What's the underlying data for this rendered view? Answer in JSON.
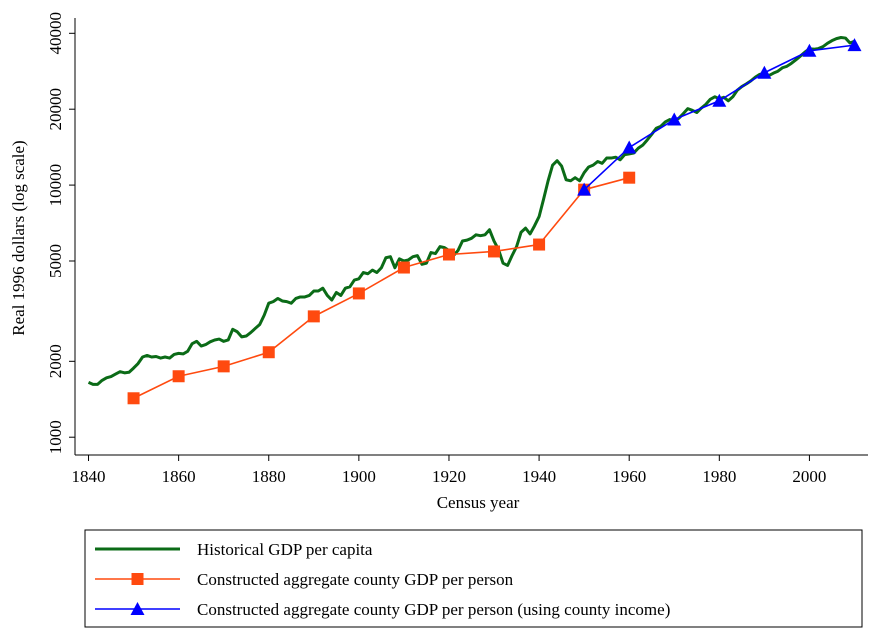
{
  "chart_data": {
    "type": "line",
    "ylabel": "Real 1996 dollars (log scale)",
    "xlabel": "Census year",
    "xlim": [
      1837,
      2013
    ],
    "xticks": [
      1840,
      1860,
      1880,
      1900,
      1920,
      1940,
      1960,
      1980,
      2000
    ],
    "ylim": [
      850,
      46000
    ],
    "yticks": [
      1000,
      2000,
      5000,
      10000,
      20000,
      40000
    ],
    "log_scale": true,
    "grid": false,
    "legend": "bottom",
    "series": [
      {
        "name": "Historical GDP per capita",
        "color": "#0b6b17",
        "marker": "none",
        "x": [
          1840,
          1841,
          1842,
          1843,
          1844,
          1845,
          1846,
          1847,
          1848,
          1849,
          1850,
          1851,
          1852,
          1853,
          1854,
          1855,
          1856,
          1857,
          1858,
          1859,
          1860,
          1861,
          1862,
          1863,
          1864,
          1865,
          1866,
          1867,
          1868,
          1869,
          1870,
          1871,
          1872,
          1873,
          1874,
          1875,
          1876,
          1877,
          1878,
          1879,
          1880,
          1881,
          1882,
          1883,
          1884,
          1885,
          1886,
          1887,
          1888,
          1889,
          1890,
          1891,
          1892,
          1893,
          1894,
          1895,
          1896,
          1897,
          1898,
          1899,
          1900,
          1901,
          1902,
          1903,
          1904,
          1905,
          1906,
          1907,
          1908,
          1909,
          1910,
          1911,
          1912,
          1913,
          1914,
          1915,
          1916,
          1917,
          1918,
          1919,
          1920,
          1921,
          1922,
          1923,
          1924,
          1925,
          1926,
          1927,
          1928,
          1929,
          1930,
          1931,
          1932,
          1933,
          1934,
          1935,
          1936,
          1937,
          1938,
          1939,
          1940,
          1941,
          1942,
          1943,
          1944,
          1945,
          1946,
          1947,
          1948,
          1949,
          1950,
          1951,
          1952,
          1953,
          1954,
          1955,
          1956,
          1957,
          1958,
          1959,
          1960,
          1961,
          1962,
          1963,
          1964,
          1965,
          1966,
          1967,
          1968,
          1969,
          1970,
          1971,
          1972,
          1973,
          1974,
          1975,
          1976,
          1977,
          1978,
          1979,
          1980,
          1981,
          1982,
          1983,
          1984,
          1985,
          1986,
          1987,
          1988,
          1989,
          1990,
          1991,
          1992,
          1993,
          1994,
          1995,
          1996,
          1997,
          1998,
          1999,
          2000,
          2001,
          2002,
          2003,
          2004,
          2005,
          2006,
          2007,
          2008,
          2009,
          2010
        ],
        "values": [
          1650,
          1620,
          1620,
          1680,
          1720,
          1740,
          1780,
          1820,
          1800,
          1810,
          1880,
          1960,
          2080,
          2110,
          2080,
          2090,
          2060,
          2080,
          2060,
          2130,
          2150,
          2140,
          2190,
          2350,
          2400,
          2300,
          2330,
          2390,
          2430,
          2450,
          2400,
          2430,
          2680,
          2620,
          2500,
          2520,
          2600,
          2700,
          2800,
          3050,
          3400,
          3450,
          3550,
          3470,
          3450,
          3400,
          3550,
          3600,
          3600,
          3650,
          3800,
          3800,
          3900,
          3650,
          3500,
          3750,
          3650,
          3900,
          3950,
          4200,
          4250,
          4500,
          4450,
          4600,
          4500,
          4700,
          5150,
          5200,
          4700,
          5100,
          5000,
          5050,
          5200,
          5250,
          4850,
          4900,
          5400,
          5350,
          5700,
          5650,
          5500,
          5250,
          5500,
          6000,
          6050,
          6150,
          6350,
          6300,
          6350,
          6650,
          6000,
          5550,
          4900,
          4800,
          5250,
          5700,
          6500,
          6750,
          6400,
          6900,
          7500,
          8800,
          10400,
          12000,
          12500,
          11900,
          10500,
          10400,
          10700,
          10400,
          11200,
          11800,
          12000,
          12400,
          12200,
          12800,
          12800,
          12900,
          12600,
          13200,
          13300,
          13400,
          14000,
          14400,
          15100,
          15900,
          16800,
          17100,
          17800,
          18200,
          18000,
          18400,
          19200,
          20100,
          19800,
          19400,
          20200,
          20900,
          21900,
          22400,
          22000,
          22300,
          21600,
          22400,
          23800,
          24600,
          25200,
          25900,
          26800,
          27500,
          27700,
          27200,
          27800,
          28300,
          29200,
          29600,
          30400,
          31400,
          32500,
          33700,
          34700,
          34600,
          34800,
          35400,
          36500,
          37400,
          38100,
          38500,
          38300,
          36600,
          37200
        ]
      },
      {
        "name": "Constructed aggregate county GDP per person",
        "color": "#ff4a0f",
        "marker": "square",
        "x": [
          1850,
          1860,
          1870,
          1880,
          1890,
          1900,
          1910,
          1920,
          1930,
          1940,
          1950,
          1960
        ],
        "values": [
          1427,
          1745,
          1910,
          2173,
          3015,
          3718,
          4710,
          5305,
          5455,
          5810,
          9590,
          10700
        ]
      },
      {
        "name": "Constructed aggregate county GDP per person (using county income)",
        "color": "#0000ff",
        "marker": "triangle",
        "x": [
          1950,
          1960,
          1970,
          1980,
          1990,
          2000,
          2010
        ],
        "values": [
          9590,
          14090,
          18200,
          21600,
          27900,
          34100,
          35900
        ]
      }
    ]
  }
}
